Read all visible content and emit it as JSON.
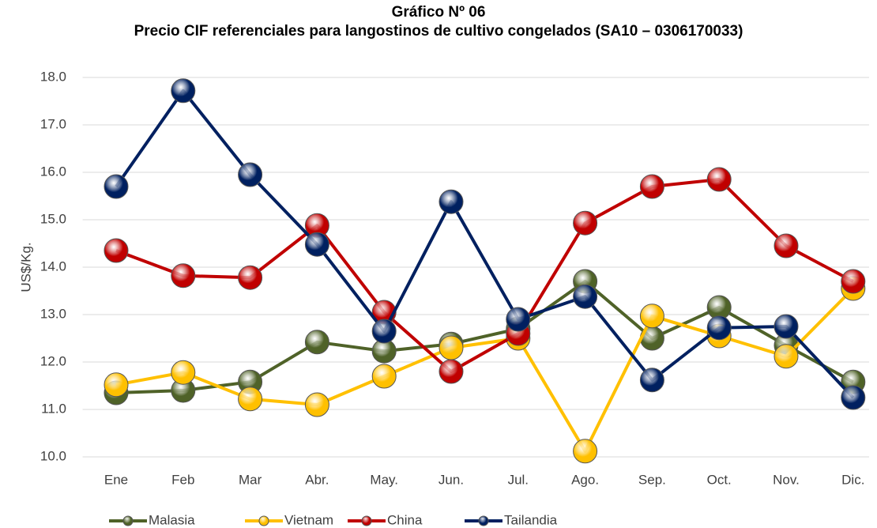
{
  "chart_data": {
    "type": "line",
    "title": "Gráfico Nº 06",
    "subtitle": "Precio CIF referenciales para langostinos de cultivo congelados (SA10 – 0306170033)",
    "y_label": "US$/Kg.",
    "categories": [
      "Ene",
      "Feb",
      "Mar",
      "Abr.",
      "May.",
      "Jun.",
      "Jul.",
      "Ago.",
      "Sep.",
      "Oct.",
      "Nov.",
      "Dic."
    ],
    "series": [
      {
        "name": "Malasia",
        "color": "#4f6228",
        "values": [
          11.35,
          11.4,
          11.58,
          12.42,
          12.23,
          12.38,
          12.7,
          13.7,
          12.5,
          13.15,
          12.35,
          11.58
        ]
      },
      {
        "name": "Vietnam",
        "color": "#ffc000",
        "values": [
          11.52,
          11.78,
          11.22,
          11.1,
          11.7,
          12.3,
          12.5,
          10.12,
          12.97,
          12.55,
          12.12,
          13.55
        ]
      },
      {
        "name": "China",
        "color": "#c00000",
        "values": [
          14.35,
          13.82,
          13.78,
          14.88,
          13.05,
          11.8,
          12.6,
          14.93,
          15.7,
          15.85,
          14.45,
          13.7
        ]
      },
      {
        "name": "Tailandia",
        "color": "#002060",
        "values": [
          15.7,
          17.72,
          15.95,
          14.48,
          12.65,
          15.38,
          12.9,
          13.38,
          11.62,
          12.72,
          12.75,
          11.25
        ]
      }
    ],
    "ylim": [
      10,
      18
    ],
    "yticks": [
      {
        "value": 10,
        "label": "10.0"
      },
      {
        "value": 11,
        "label": "11.0"
      },
      {
        "value": 12,
        "label": "12.0"
      },
      {
        "value": 13,
        "label": "13.0"
      },
      {
        "value": 14,
        "label": "14.0"
      },
      {
        "value": 15,
        "label": "15.0"
      },
      {
        "value": 16,
        "label": "16.0"
      },
      {
        "value": 17,
        "label": "17.0"
      },
      {
        "value": 18,
        "label": "18.0"
      }
    ],
    "grid": true,
    "legend": "bottom"
  }
}
